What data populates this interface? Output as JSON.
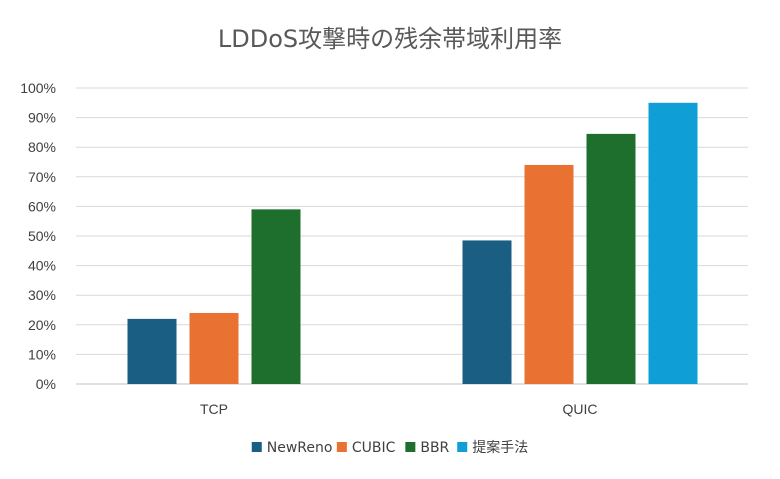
{
  "chart_data": {
    "type": "bar",
    "title": "LDDoS攻撃時の残余帯域利用率",
    "categories": [
      "TCP",
      "QUIC"
    ],
    "y_ticks": [
      "0%",
      "10%",
      "20%",
      "30%",
      "40%",
      "50%",
      "60%",
      "70%",
      "80%",
      "90%",
      "100%"
    ],
    "ylim": [
      0,
      100
    ],
    "grid": true,
    "legend_position": "bottom",
    "series": [
      {
        "name": "NewReno",
        "color": "#1b5e84",
        "values": [
          22,
          48.5
        ]
      },
      {
        "name": "CUBIC",
        "color": "#e97132",
        "values": [
          24,
          74
        ]
      },
      {
        "name": "BBR",
        "color": "#1e6f2e",
        "values": [
          59,
          84.5
        ]
      },
      {
        "name": "提案手法",
        "color": "#0f9ed5",
        "values": [
          null,
          95
        ]
      }
    ]
  }
}
